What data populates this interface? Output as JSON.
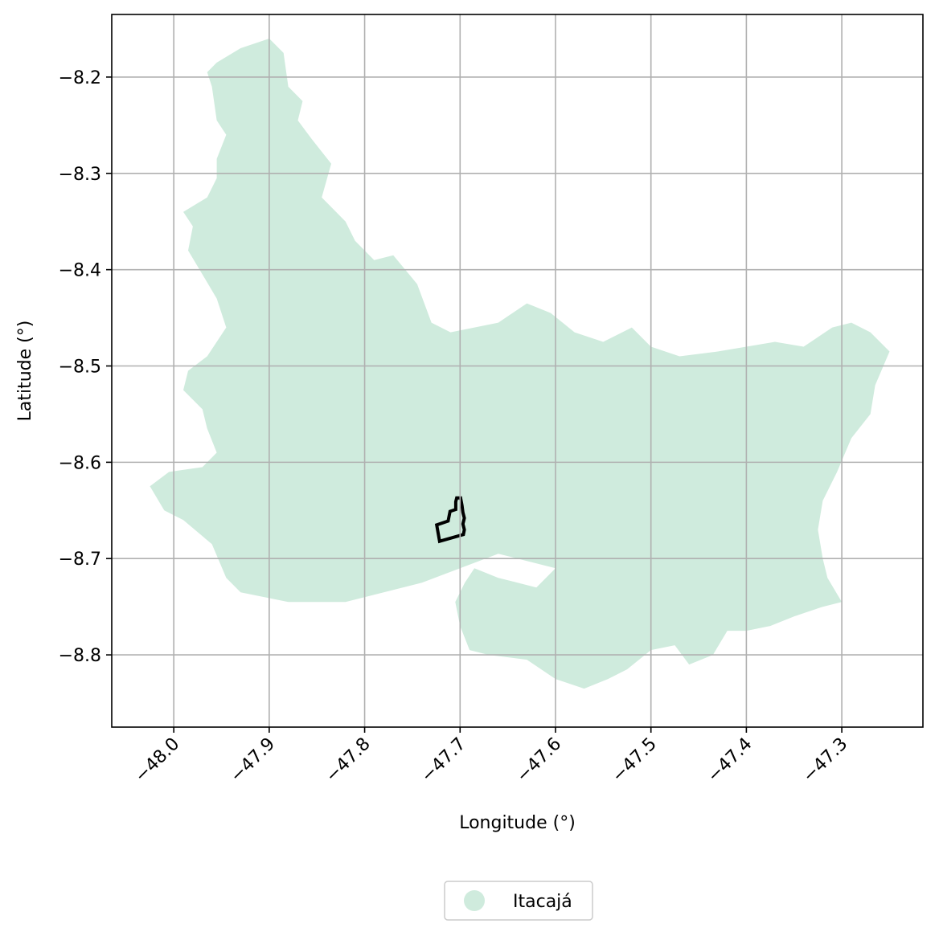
{
  "map": {
    "xlabel": "Longitude (°)",
    "ylabel": "Latitude (°)",
    "xlim": [
      -48.065,
      -47.215
    ],
    "ylim": [
      -8.875,
      -8.135
    ],
    "grid": true,
    "x_ticks": [
      -48.0,
      -47.9,
      -47.8,
      -47.7,
      -47.6,
      -47.5,
      -47.4,
      -47.3
    ],
    "x_tick_labels": [
      "−48.0",
      "−47.9",
      "−47.8",
      "−47.7",
      "−47.6",
      "−47.5",
      "−47.4",
      "−47.3"
    ],
    "y_ticks": [
      -8.2,
      -8.3,
      -8.4,
      -8.5,
      -8.6,
      -8.7,
      -8.8
    ],
    "y_tick_labels": [
      "−8.2",
      "−8.3",
      "−8.4",
      "−8.5",
      "−8.6",
      "−8.7",
      "−8.8"
    ],
    "region": {
      "name": "Itacajá",
      "fill_color": "#cfebdd",
      "outline": [
        [
          -47.93,
          -8.17
        ],
        [
          -47.9,
          -8.16
        ],
        [
          -47.885,
          -8.175
        ],
        [
          -47.88,
          -8.21
        ],
        [
          -47.865,
          -8.225
        ],
        [
          -47.87,
          -8.245
        ],
        [
          -47.855,
          -8.265
        ],
        [
          -47.835,
          -8.29
        ],
        [
          -47.845,
          -8.325
        ],
        [
          -47.82,
          -8.35
        ],
        [
          -47.81,
          -8.37
        ],
        [
          -47.79,
          -8.39
        ],
        [
          -47.77,
          -8.385
        ],
        [
          -47.745,
          -8.415
        ],
        [
          -47.73,
          -8.455
        ],
        [
          -47.71,
          -8.465
        ],
        [
          -47.66,
          -8.455
        ],
        [
          -47.63,
          -8.435
        ],
        [
          -47.605,
          -8.445
        ],
        [
          -47.58,
          -8.465
        ],
        [
          -47.55,
          -8.475
        ],
        [
          -47.52,
          -8.46
        ],
        [
          -47.5,
          -8.48
        ],
        [
          -47.47,
          -8.49
        ],
        [
          -47.43,
          -8.485
        ],
        [
          -47.4,
          -8.48
        ],
        [
          -47.37,
          -8.475
        ],
        [
          -47.34,
          -8.48
        ],
        [
          -47.31,
          -8.46
        ],
        [
          -47.29,
          -8.455
        ],
        [
          -47.27,
          -8.465
        ],
        [
          -47.25,
          -8.485
        ],
        [
          -47.265,
          -8.52
        ],
        [
          -47.27,
          -8.55
        ],
        [
          -47.29,
          -8.575
        ],
        [
          -47.305,
          -8.61
        ],
        [
          -47.32,
          -8.64
        ],
        [
          -47.325,
          -8.67
        ],
        [
          -47.32,
          -8.7
        ],
        [
          -47.315,
          -8.72
        ],
        [
          -47.3,
          -8.745
        ],
        [
          -47.32,
          -8.75
        ],
        [
          -47.35,
          -8.76
        ],
        [
          -47.375,
          -8.77
        ],
        [
          -47.4,
          -8.775
        ],
        [
          -47.42,
          -8.775
        ],
        [
          -47.435,
          -8.8
        ],
        [
          -47.46,
          -8.81
        ],
        [
          -47.475,
          -8.79
        ],
        [
          -47.5,
          -8.795
        ],
        [
          -47.525,
          -8.815
        ],
        [
          -47.545,
          -8.825
        ],
        [
          -47.57,
          -8.835
        ],
        [
          -47.6,
          -8.825
        ],
        [
          -47.63,
          -8.805
        ],
        [
          -47.67,
          -8.8
        ],
        [
          -47.69,
          -8.795
        ],
        [
          -47.7,
          -8.77
        ],
        [
          -47.705,
          -8.745
        ],
        [
          -47.695,
          -8.725
        ],
        [
          -47.685,
          -8.71
        ],
        [
          -47.66,
          -8.72
        ],
        [
          -47.62,
          -8.73
        ],
        [
          -47.6,
          -8.71
        ],
        [
          -47.64,
          -8.7
        ],
        [
          -47.66,
          -8.695
        ],
        [
          -47.74,
          -8.725
        ],
        [
          -47.82,
          -8.745
        ],
        [
          -47.88,
          -8.745
        ],
        [
          -47.93,
          -8.735
        ],
        [
          -47.945,
          -8.72
        ],
        [
          -47.96,
          -8.685
        ],
        [
          -47.99,
          -8.66
        ],
        [
          -48.01,
          -8.65
        ],
        [
          -48.025,
          -8.625
        ],
        [
          -48.005,
          -8.61
        ],
        [
          -47.97,
          -8.605
        ],
        [
          -47.955,
          -8.59
        ],
        [
          -47.965,
          -8.565
        ],
        [
          -47.97,
          -8.545
        ],
        [
          -47.99,
          -8.525
        ],
        [
          -47.985,
          -8.505
        ],
        [
          -47.965,
          -8.49
        ],
        [
          -47.945,
          -8.46
        ],
        [
          -47.955,
          -8.43
        ],
        [
          -47.97,
          -8.405
        ],
        [
          -47.985,
          -8.38
        ],
        [
          -47.98,
          -8.355
        ],
        [
          -47.99,
          -8.34
        ],
        [
          -47.965,
          -8.325
        ],
        [
          -47.955,
          -8.305
        ],
        [
          -47.955,
          -8.285
        ],
        [
          -47.945,
          -8.26
        ],
        [
          -47.955,
          -8.245
        ],
        [
          -47.96,
          -8.21
        ],
        [
          -47.965,
          -8.195
        ],
        [
          -47.955,
          -8.185
        ]
      ]
    },
    "highlight": {
      "outline_color": "#000000",
      "outline": [
        [
          -47.7035,
          -8.637
        ],
        [
          -47.6995,
          -8.637
        ],
        [
          -47.698,
          -8.645
        ],
        [
          -47.697,
          -8.652
        ],
        [
          -47.6955,
          -8.658
        ],
        [
          -47.697,
          -8.664
        ],
        [
          -47.6955,
          -8.67
        ],
        [
          -47.6965,
          -8.675
        ],
        [
          -47.7215,
          -8.682
        ],
        [
          -47.7245,
          -8.665
        ],
        [
          -47.7125,
          -8.661
        ],
        [
          -47.7105,
          -8.651
        ],
        [
          -47.7045,
          -8.649
        ],
        [
          -47.7045,
          -8.641
        ]
      ]
    },
    "legend": {
      "label": "Itacajá",
      "marker_color": "#cfebdd",
      "position": "bottom-center"
    }
  }
}
